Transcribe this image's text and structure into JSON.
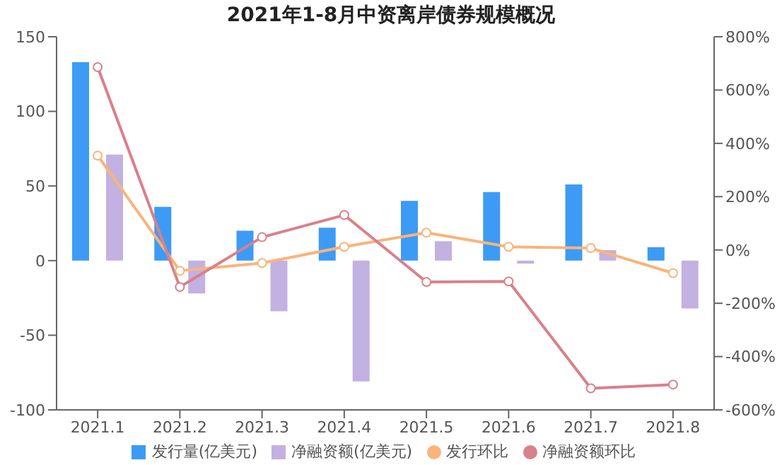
{
  "chart_data": {
    "type": "bar",
    "title": "2021年1-8月中资离岸债券规模概况",
    "categories": [
      "2021.1",
      "2021.2",
      "2021.3",
      "2021.4",
      "2021.5",
      "2021.6",
      "2021.7",
      "2021.8"
    ],
    "series": [
      {
        "name": "发行量(亿美元)",
        "color": "#3d9bf5",
        "values": [
          133,
          36,
          20,
          22,
          40,
          46,
          51,
          9
        ]
      },
      {
        "name": "净融资额(亿美元)",
        "color": "#c3b1e1",
        "values": [
          71,
          -22,
          -34,
          -81,
          13,
          -2,
          7,
          -32
        ]
      },
      {
        "name": "发行环比",
        "type": "line",
        "axis": "y2",
        "color": "#f9b47a",
        "values": [
          354,
          -78,
          -49,
          12,
          65,
          12,
          7,
          -87
        ]
      },
      {
        "name": "净融资额环比",
        "type": "line",
        "axis": "y2",
        "color": "#d9808a",
        "values": [
          686,
          -139,
          48,
          131,
          -120,
          -118,
          -519,
          -505
        ]
      }
    ],
    "ylim": [
      -100,
      150
    ],
    "yticks": [
      -100,
      -50,
      0,
      50,
      100,
      150
    ],
    "y2lim": [
      -600,
      800
    ],
    "y2ticks": [
      {
        "value": -600,
        "label": "-600%"
      },
      {
        "value": -400,
        "label": "-400%"
      },
      {
        "value": -200,
        "label": "-200%"
      },
      {
        "value": 0,
        "label": "0%"
      },
      {
        "value": 200,
        "label": "200%"
      },
      {
        "value": 400,
        "label": "400%"
      },
      {
        "value": 600,
        "label": "600%"
      },
      {
        "value": 800,
        "label": "800%"
      }
    ],
    "grid": false,
    "legend": "bottom",
    "marker": "circle",
    "line_style": "solid"
  }
}
